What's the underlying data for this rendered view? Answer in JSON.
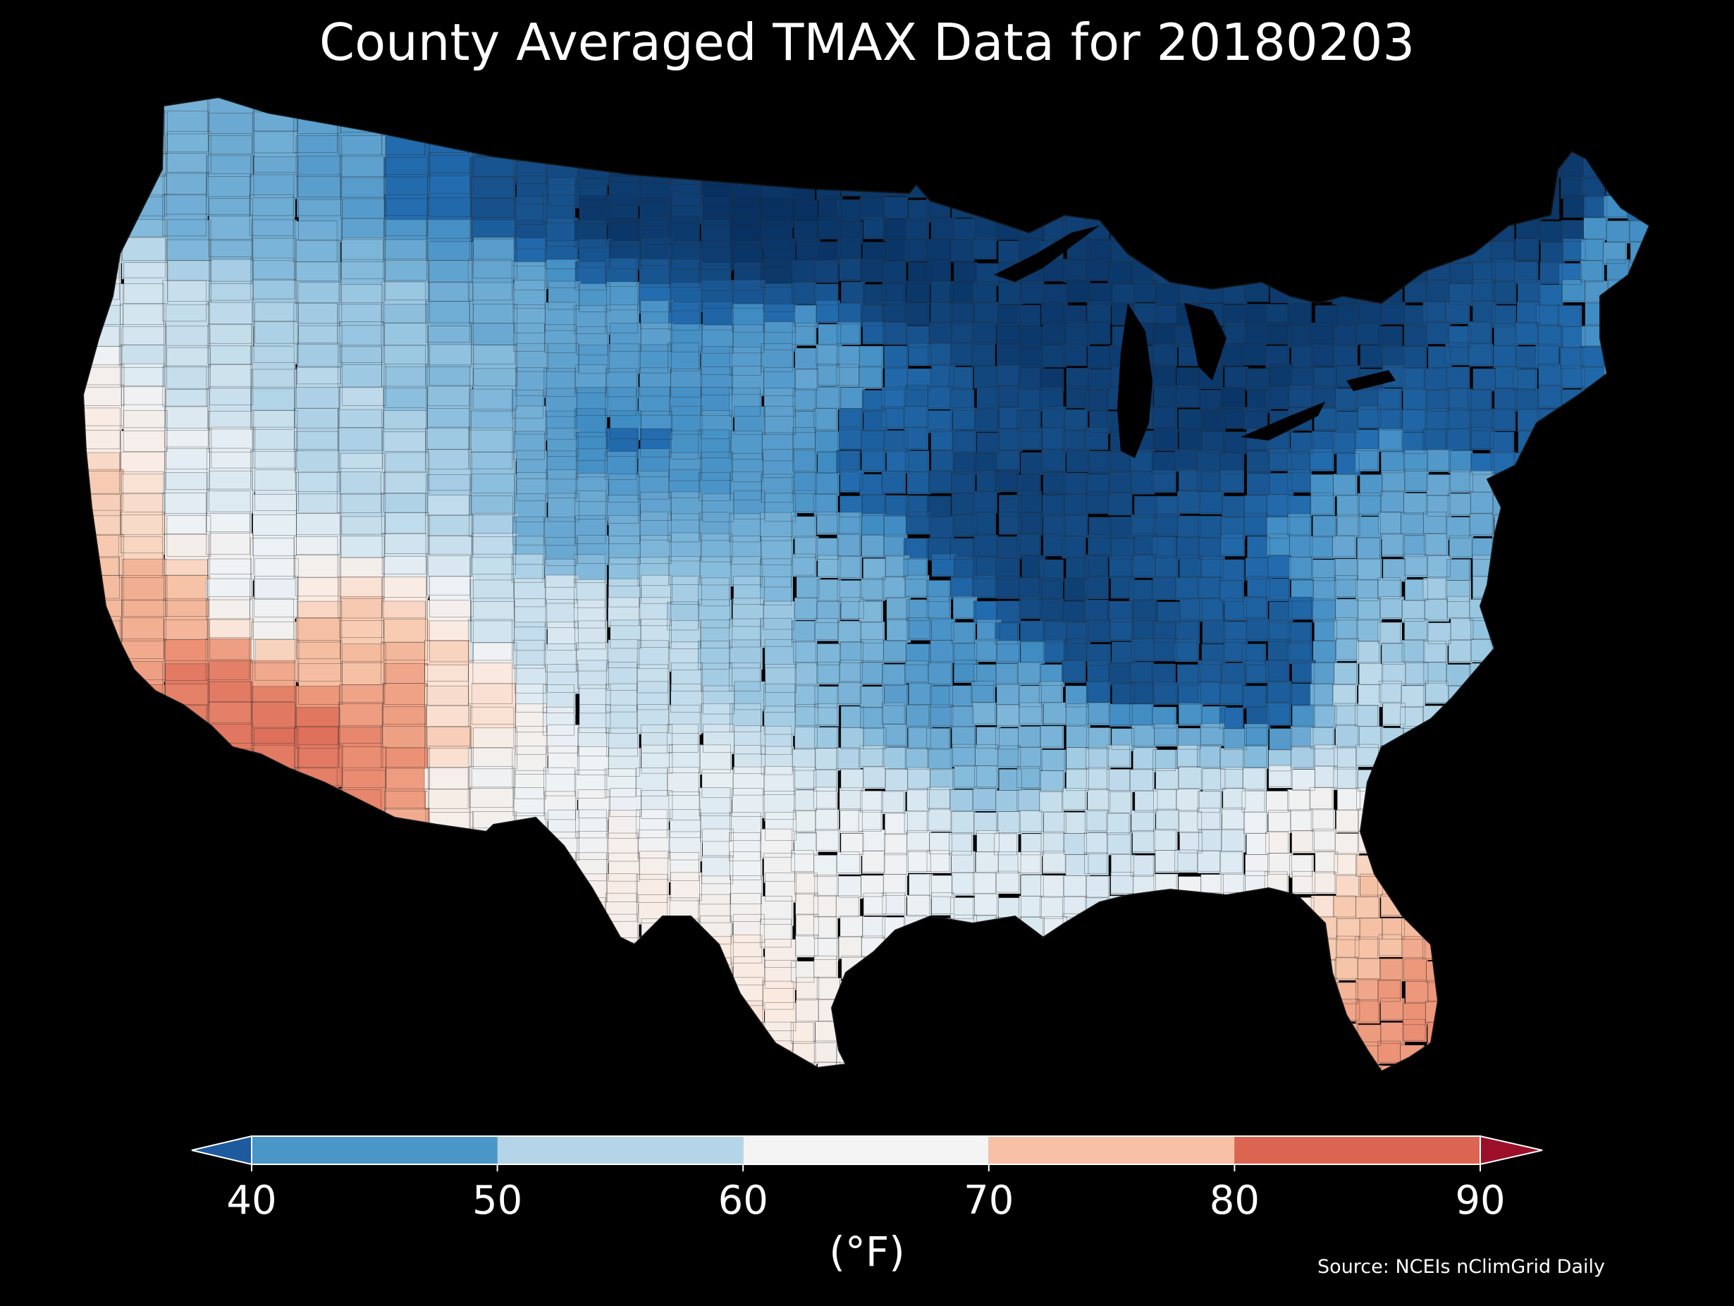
{
  "title": "County Averaged TMAX Data for 20180203",
  "colorbar": {
    "unit_label": "(°F)",
    "ticks": [
      "40",
      "50",
      "60",
      "70",
      "80",
      "90"
    ],
    "bins": [
      {
        "range": [
          40,
          50
        ],
        "color": "#4a96c8"
      },
      {
        "range": [
          50,
          60
        ],
        "color": "#b4d5e8"
      },
      {
        "range": [
          60,
          70
        ],
        "color": "#f4f4f4"
      },
      {
        "range": [
          70,
          80
        ],
        "color": "#f8c0a4"
      },
      {
        "range": [
          80,
          90
        ],
        "color": "#dc6552"
      }
    ],
    "under_color": "#1d5a9e",
    "over_color": "#9b1028"
  },
  "source": "Source: NCEIs nClimGrid Daily",
  "map": {
    "region": "Contiguous United States",
    "background": "#000000",
    "county_border_color": "#2a2a2a",
    "water_color": "#000000"
  }
}
